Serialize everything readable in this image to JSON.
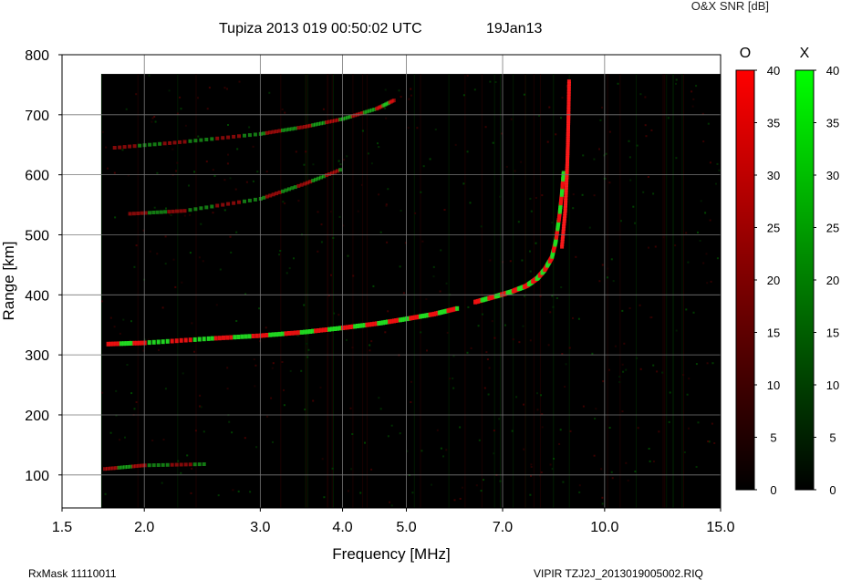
{
  "chart_data": {
    "type": "heatmap",
    "title": "Tupiza 2013 019 00:50:02 UTC",
    "date_label": "19Jan13",
    "colorbar_title": "O&X SNR [dB]",
    "xlabel": "Frequency [MHz]",
    "ylabel": "Range [km]",
    "x_scale": "log",
    "xlim": [
      1.5,
      15.0
    ],
    "ylim": [
      45,
      800
    ],
    "x_ticks": [
      1.5,
      2.0,
      3.0,
      4.0,
      5.0,
      7.0,
      10.0,
      15.0
    ],
    "x_tick_labels": [
      "1.5",
      "2.0",
      "3.0",
      "4.0",
      "5.0",
      "7.0",
      "10.0",
      "15.0"
    ],
    "y_ticks": [
      100,
      200,
      300,
      400,
      500,
      600,
      700,
      800
    ],
    "y_tick_labels": [
      "100",
      "200",
      "300",
      "400",
      "500",
      "600",
      "700",
      "800"
    ],
    "data_extent": {
      "freq_min": 1.72,
      "freq_max": 15.0,
      "range_max": 768
    },
    "grid": true,
    "colorbars": [
      {
        "name": "O",
        "label": "O",
        "color": "#ff0000",
        "min": 0,
        "max": 40,
        "ticks": [
          0,
          5,
          10,
          15,
          20,
          25,
          30,
          35,
          40
        ]
      },
      {
        "name": "X",
        "label": "X",
        "color": "#00ff00",
        "min": 0,
        "max": 40,
        "ticks": [
          0,
          5,
          10,
          15,
          20,
          25,
          30,
          35,
          40
        ]
      }
    ],
    "traces": [
      {
        "mode": "mixed",
        "points": [
          [
            1.76,
            318
          ],
          [
            2.0,
            320
          ],
          [
            2.5,
            327
          ],
          [
            3.0,
            332
          ],
          [
            3.5,
            338
          ],
          [
            4.0,
            345
          ],
          [
            4.5,
            352
          ],
          [
            5.0,
            360
          ],
          [
            5.5,
            368
          ],
          [
            6.0,
            378
          ]
        ]
      },
      {
        "mode": "mixed",
        "points": [
          [
            6.35,
            388
          ],
          [
            6.8,
            397
          ],
          [
            7.2,
            405
          ],
          [
            7.6,
            415
          ],
          [
            7.9,
            428
          ],
          [
            8.1,
            442
          ],
          [
            8.3,
            462
          ],
          [
            8.42,
            490
          ],
          [
            8.52,
            530
          ],
          [
            8.6,
            570
          ],
          [
            8.65,
            605
          ]
        ]
      },
      {
        "mode": "O",
        "points": [
          [
            8.6,
            480
          ],
          [
            8.7,
            540
          ],
          [
            8.75,
            600
          ],
          [
            8.78,
            650
          ],
          [
            8.8,
            700
          ],
          [
            8.82,
            760
          ]
        ]
      },
      {
        "mode": "mixed",
        "points": [
          [
            1.9,
            535
          ],
          [
            2.3,
            540
          ],
          [
            3.0,
            560
          ],
          [
            3.5,
            585
          ],
          [
            4.0,
            610
          ]
        ]
      },
      {
        "mode": "mixed",
        "points": [
          [
            1.8,
            645
          ],
          [
            2.3,
            655
          ],
          [
            3.0,
            668
          ],
          [
            3.5,
            680
          ],
          [
            4.0,
            693
          ],
          [
            4.5,
            710
          ],
          [
            4.8,
            725
          ]
        ]
      },
      {
        "mode": "mixed",
        "points": [
          [
            1.74,
            110
          ],
          [
            2.0,
            116
          ],
          [
            2.5,
            118
          ]
        ]
      }
    ]
  },
  "footer": {
    "left": "RxMask 11110011",
    "right": "VIPIR  TZJ2J_2013019005002.RIQ"
  }
}
